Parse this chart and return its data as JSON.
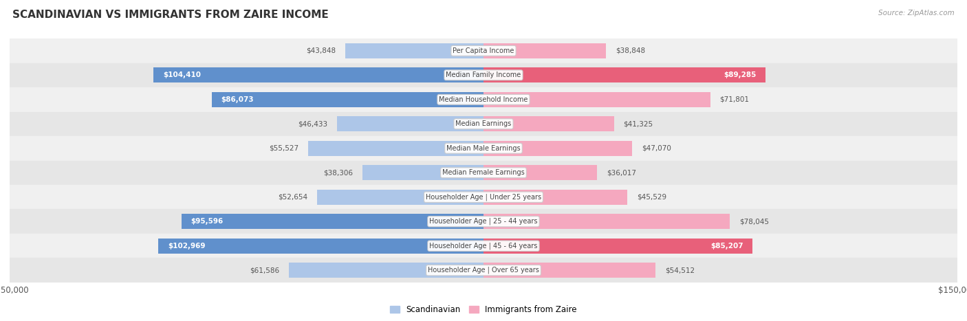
{
  "title": "SCANDINAVIAN VS IMMIGRANTS FROM ZAIRE INCOME",
  "source": "Source: ZipAtlas.com",
  "categories": [
    "Per Capita Income",
    "Median Family Income",
    "Median Household Income",
    "Median Earnings",
    "Median Male Earnings",
    "Median Female Earnings",
    "Householder Age | Under 25 years",
    "Householder Age | 25 - 44 years",
    "Householder Age | 45 - 64 years",
    "Householder Age | Over 65 years"
  ],
  "scandinavian": [
    43848,
    104410,
    86073,
    46433,
    55527,
    38306,
    52654,
    95596,
    102969,
    61586
  ],
  "zaire": [
    38848,
    89285,
    71801,
    41325,
    47070,
    36017,
    45529,
    78045,
    85207,
    54512
  ],
  "max_val": 150000,
  "color_scandinavian_light": "#adc6e8",
  "color_scandinavian_dark": "#6090cc",
  "color_zaire_light": "#f5a8bf",
  "color_zaire_dark": "#e8607a",
  "bar_height": 0.62,
  "row_bg_even": "#f0f0f0",
  "row_bg_odd": "#e6e6e6",
  "figsize": [
    14.06,
    4.67
  ],
  "dpi": 100,
  "dark_threshold": 80000
}
